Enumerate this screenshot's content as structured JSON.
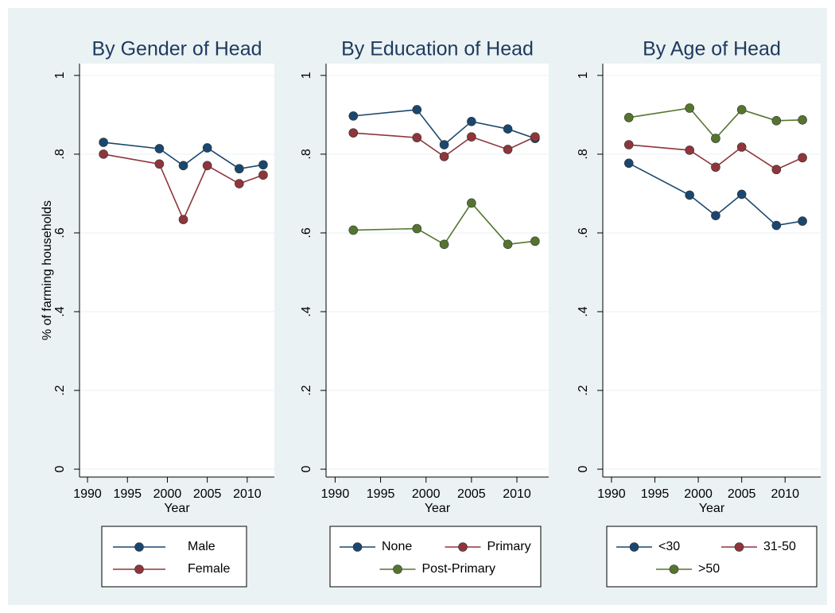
{
  "chart_data": [
    {
      "type": "line",
      "title": "By Gender of Head",
      "xlabel": "Year",
      "ylabel": "% of farming households",
      "x": [
        1992,
        1999,
        2002,
        2005,
        2009,
        2012
      ],
      "series": [
        {
          "name": "Male",
          "color": "#1a476f",
          "values": [
            0.83,
            0.814,
            0.771,
            0.816,
            0.763,
            0.773
          ]
        },
        {
          "name": "Female",
          "color": "#90353b",
          "values": [
            0.8,
            0.775,
            0.634,
            0.771,
            0.725,
            0.747
          ]
        }
      ],
      "xlim": [
        1989,
        2013.4
      ],
      "xticks": [
        1990,
        1995,
        2000,
        2005,
        2010
      ],
      "ylim": [
        -0.02,
        1.03
      ],
      "yticks": [
        0,
        {
          "value": 0.2,
          "label": ".2"
        },
        {
          "value": 0.4,
          "label": ".4"
        },
        {
          "value": 0.6,
          "label": ".6"
        },
        {
          "value": 0.8,
          "label": ".8"
        },
        1
      ],
      "grid": true
    },
    {
      "type": "line",
      "title": "By Education of Head",
      "xlabel": "Year",
      "x": [
        1992,
        1999,
        2002,
        2005,
        2009,
        2012
      ],
      "series": [
        {
          "name": "None",
          "color": "#1a476f",
          "values": [
            0.897,
            0.913,
            0.824,
            0.883,
            0.864,
            0.84
          ]
        },
        {
          "name": "Primary",
          "color": "#90353b",
          "values": [
            0.854,
            0.842,
            0.794,
            0.844,
            0.812,
            0.844
          ]
        },
        {
          "name": "Post-Primary",
          "color": "#55752f",
          "values": [
            0.607,
            0.611,
            0.571,
            0.676,
            0.571,
            0.579
          ]
        }
      ],
      "xlim": [
        1989,
        2013.5
      ],
      "xticks": [
        1990,
        1995,
        2000,
        2005,
        2010
      ],
      "ylim": [
        -0.02,
        1.03
      ],
      "yticks": [
        0,
        {
          "value": 0.2,
          "label": ".2"
        },
        {
          "value": 0.4,
          "label": ".4"
        },
        {
          "value": 0.6,
          "label": ".6"
        },
        {
          "value": 0.8,
          "label": ".8"
        },
        1
      ],
      "grid": true
    },
    {
      "type": "line",
      "title": "By Age of Head",
      "xlabel": "Year",
      "x": [
        1992,
        1999,
        2002,
        2005,
        2009,
        2012
      ],
      "series": [
        {
          "name": "<30",
          "color": "#1a476f",
          "values": [
            0.777,
            0.696,
            0.644,
            0.698,
            0.619,
            0.63
          ]
        },
        {
          "name": "31-50",
          "color": "#90353b",
          "values": [
            0.824,
            0.81,
            0.767,
            0.818,
            0.761,
            0.791
          ]
        },
        {
          "name": ">50",
          "color": "#55752f",
          "values": [
            0.893,
            0.917,
            0.84,
            0.913,
            0.885,
            0.887
          ]
        }
      ],
      "xlim": [
        1989,
        2014.1
      ],
      "xticks": [
        1990,
        1995,
        2000,
        2005,
        2010
      ],
      "ylim": [
        -0.02,
        1.03
      ],
      "yticks": [
        0,
        {
          "value": 0.2,
          "label": ".2"
        },
        {
          "value": 0.4,
          "label": ".4"
        },
        {
          "value": 0.6,
          "label": ".6"
        },
        {
          "value": 0.8,
          "label": ".8"
        },
        1
      ],
      "grid": true
    }
  ]
}
